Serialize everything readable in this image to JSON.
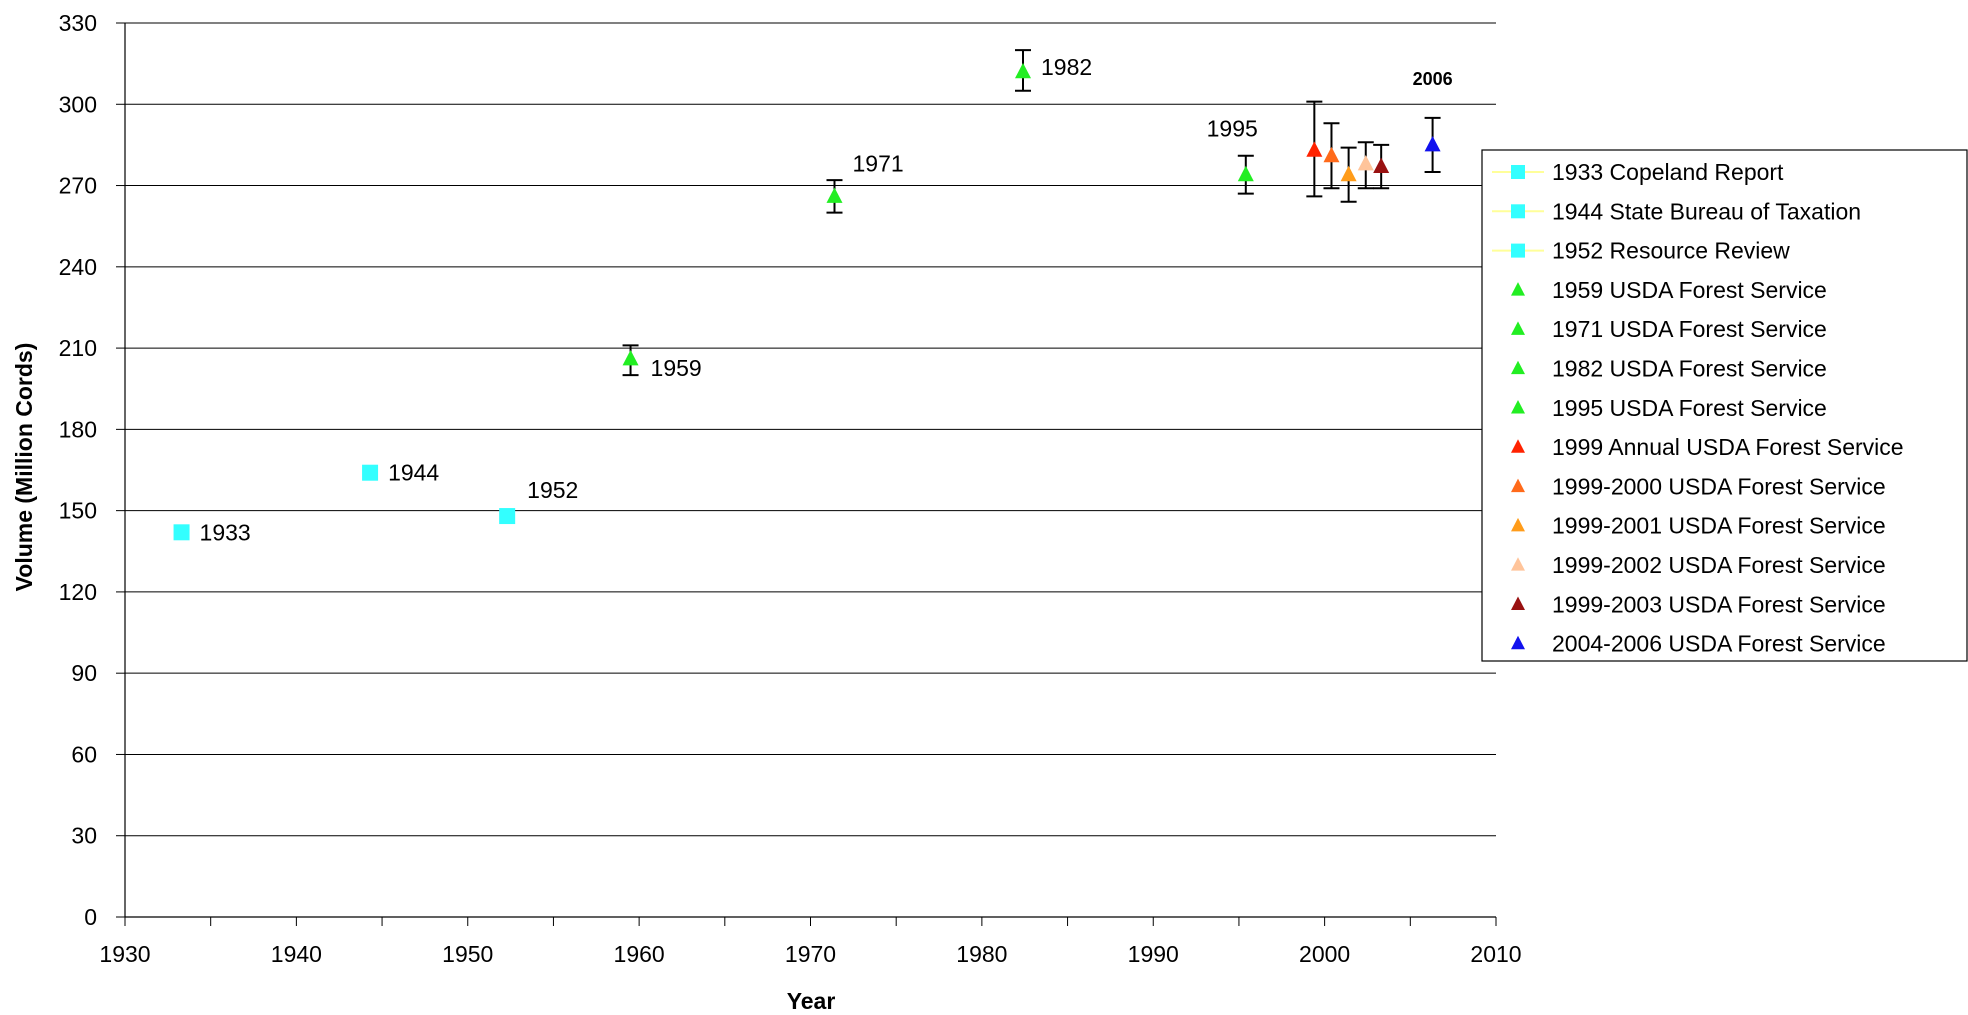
{
  "chart_data": {
    "type": "scatter",
    "title": "",
    "xlabel": "Year",
    "ylabel": "Volume (Million Cords)",
    "xlim": [
      1930,
      2010
    ],
    "ylim": [
      0,
      330
    ],
    "x_ticks": [
      1930,
      1940,
      1950,
      1960,
      1970,
      1980,
      1990,
      2000,
      2010
    ],
    "y_ticks": [
      0,
      30,
      60,
      90,
      120,
      150,
      180,
      210,
      240,
      270,
      300,
      330
    ],
    "grid": "horizontal",
    "legend_position": "right",
    "series": [
      {
        "name": "1933 Copeland Report",
        "marker": "square",
        "color": "#33ffff",
        "x": 1933.3,
        "y": 142,
        "label": "1933"
      },
      {
        "name": "1944 State Bureau of Taxation",
        "marker": "square",
        "color": "#33ffff",
        "x": 1944.3,
        "y": 164,
        "label": "1944"
      },
      {
        "name": "1952 Resource Review",
        "marker": "square",
        "color": "#33ffff",
        "x": 1952.3,
        "y": 148,
        "label": "1952"
      },
      {
        "name": "1959 USDA Forest Service",
        "marker": "triangle",
        "color": "#22ee22",
        "x": 1959.5,
        "y": 206,
        "err_low": 200,
        "err_high": 211,
        "label": "1959"
      },
      {
        "name": "1971 USDA Forest Service",
        "marker": "triangle",
        "color": "#22ee22",
        "x": 1971.4,
        "y": 266,
        "err_low": 260,
        "err_high": 272,
        "label": "1971"
      },
      {
        "name": "1982 USDA Forest Service",
        "marker": "triangle",
        "color": "#22ee22",
        "x": 1982.4,
        "y": 312,
        "err_low": 305,
        "err_high": 320,
        "label": "1982"
      },
      {
        "name": "1995 USDA Forest Service",
        "marker": "triangle",
        "color": "#22ee22",
        "x": 1995.4,
        "y": 274,
        "err_low": 267,
        "err_high": 281,
        "label": "1995"
      },
      {
        "name": "1999 Annual USDA Forest Service",
        "marker": "triangle",
        "color": "#ff2200",
        "x": 1999.4,
        "y": 283,
        "err_low": 266,
        "err_high": 301
      },
      {
        "name": "1999-2000 USDA Forest Service",
        "marker": "triangle",
        "color": "#ff6a1a",
        "x": 2000.4,
        "y": 281,
        "err_low": 269,
        "err_high": 293
      },
      {
        "name": "1999-2001 USDA Forest Service",
        "marker": "triangle",
        "color": "#ff9c1a",
        "x": 2001.4,
        "y": 274,
        "err_low": 264,
        "err_high": 284
      },
      {
        "name": "1999-2002 USDA Forest Service",
        "marker": "triangle",
        "color": "#ffc49a",
        "x": 2002.4,
        "y": 278,
        "err_low": 269,
        "err_high": 286
      },
      {
        "name": "1999-2003 USDA Forest Service",
        "marker": "triangle",
        "color": "#991111",
        "x": 2003.3,
        "y": 277,
        "err_low": 269,
        "err_high": 285
      },
      {
        "name": "2004-2006 USDA Forest Service",
        "marker": "triangle",
        "color": "#1111ee",
        "x": 2006.3,
        "y": 285,
        "err_low": 275,
        "err_high": 295,
        "label": "2006",
        "label_bold": true
      }
    ]
  }
}
